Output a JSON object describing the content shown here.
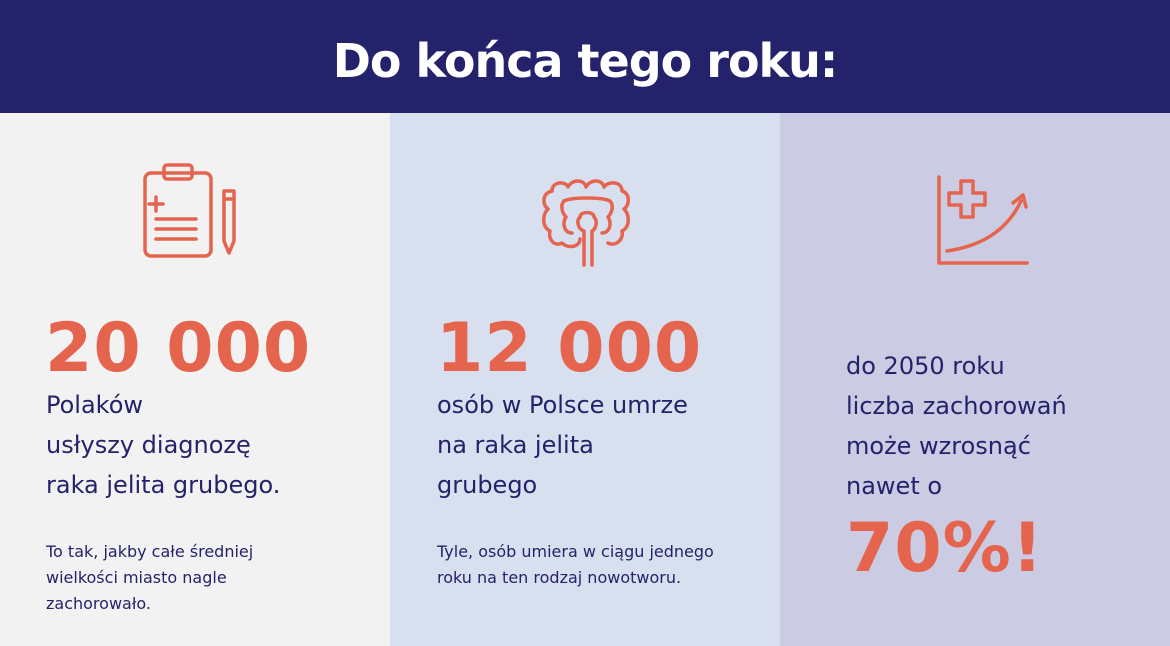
{
  "header": {
    "title": "Do końca tego roku:"
  },
  "colors": {
    "header_bg": "#24226a",
    "accent": "#e5644d",
    "text": "#24226a",
    "col1_bg": "#f2f2f3",
    "col2_bg": "#d8e0f0",
    "col3_bg": "#cbcbe3"
  },
  "columns": [
    {
      "icon": "clipboard-pencil-icon",
      "big_number": "20 000",
      "main_lines": [
        "Polaków",
        "usłyszy diagnozę",
        "raka jelita grubego."
      ],
      "note_lines": [
        "To tak, jakby całe średniej",
        "wielkości miasto nagle",
        "zachorowało."
      ]
    },
    {
      "icon": "intestine-icon",
      "big_number": "12 000",
      "main_lines": [
        "osób w Polsce umrze",
        "na raka jelita",
        "grubego"
      ],
      "note_lines": [
        "Tyle, osób umiera w ciągu jednego",
        "roku na ten rodzaj nowotworu."
      ]
    },
    {
      "icon": "growth-chart-plus-icon",
      "main_lines": [
        "do 2050 roku",
        "liczba zachorowań",
        "może wzrosnąć",
        "nawet o"
      ],
      "big_number": "70%!"
    }
  ]
}
